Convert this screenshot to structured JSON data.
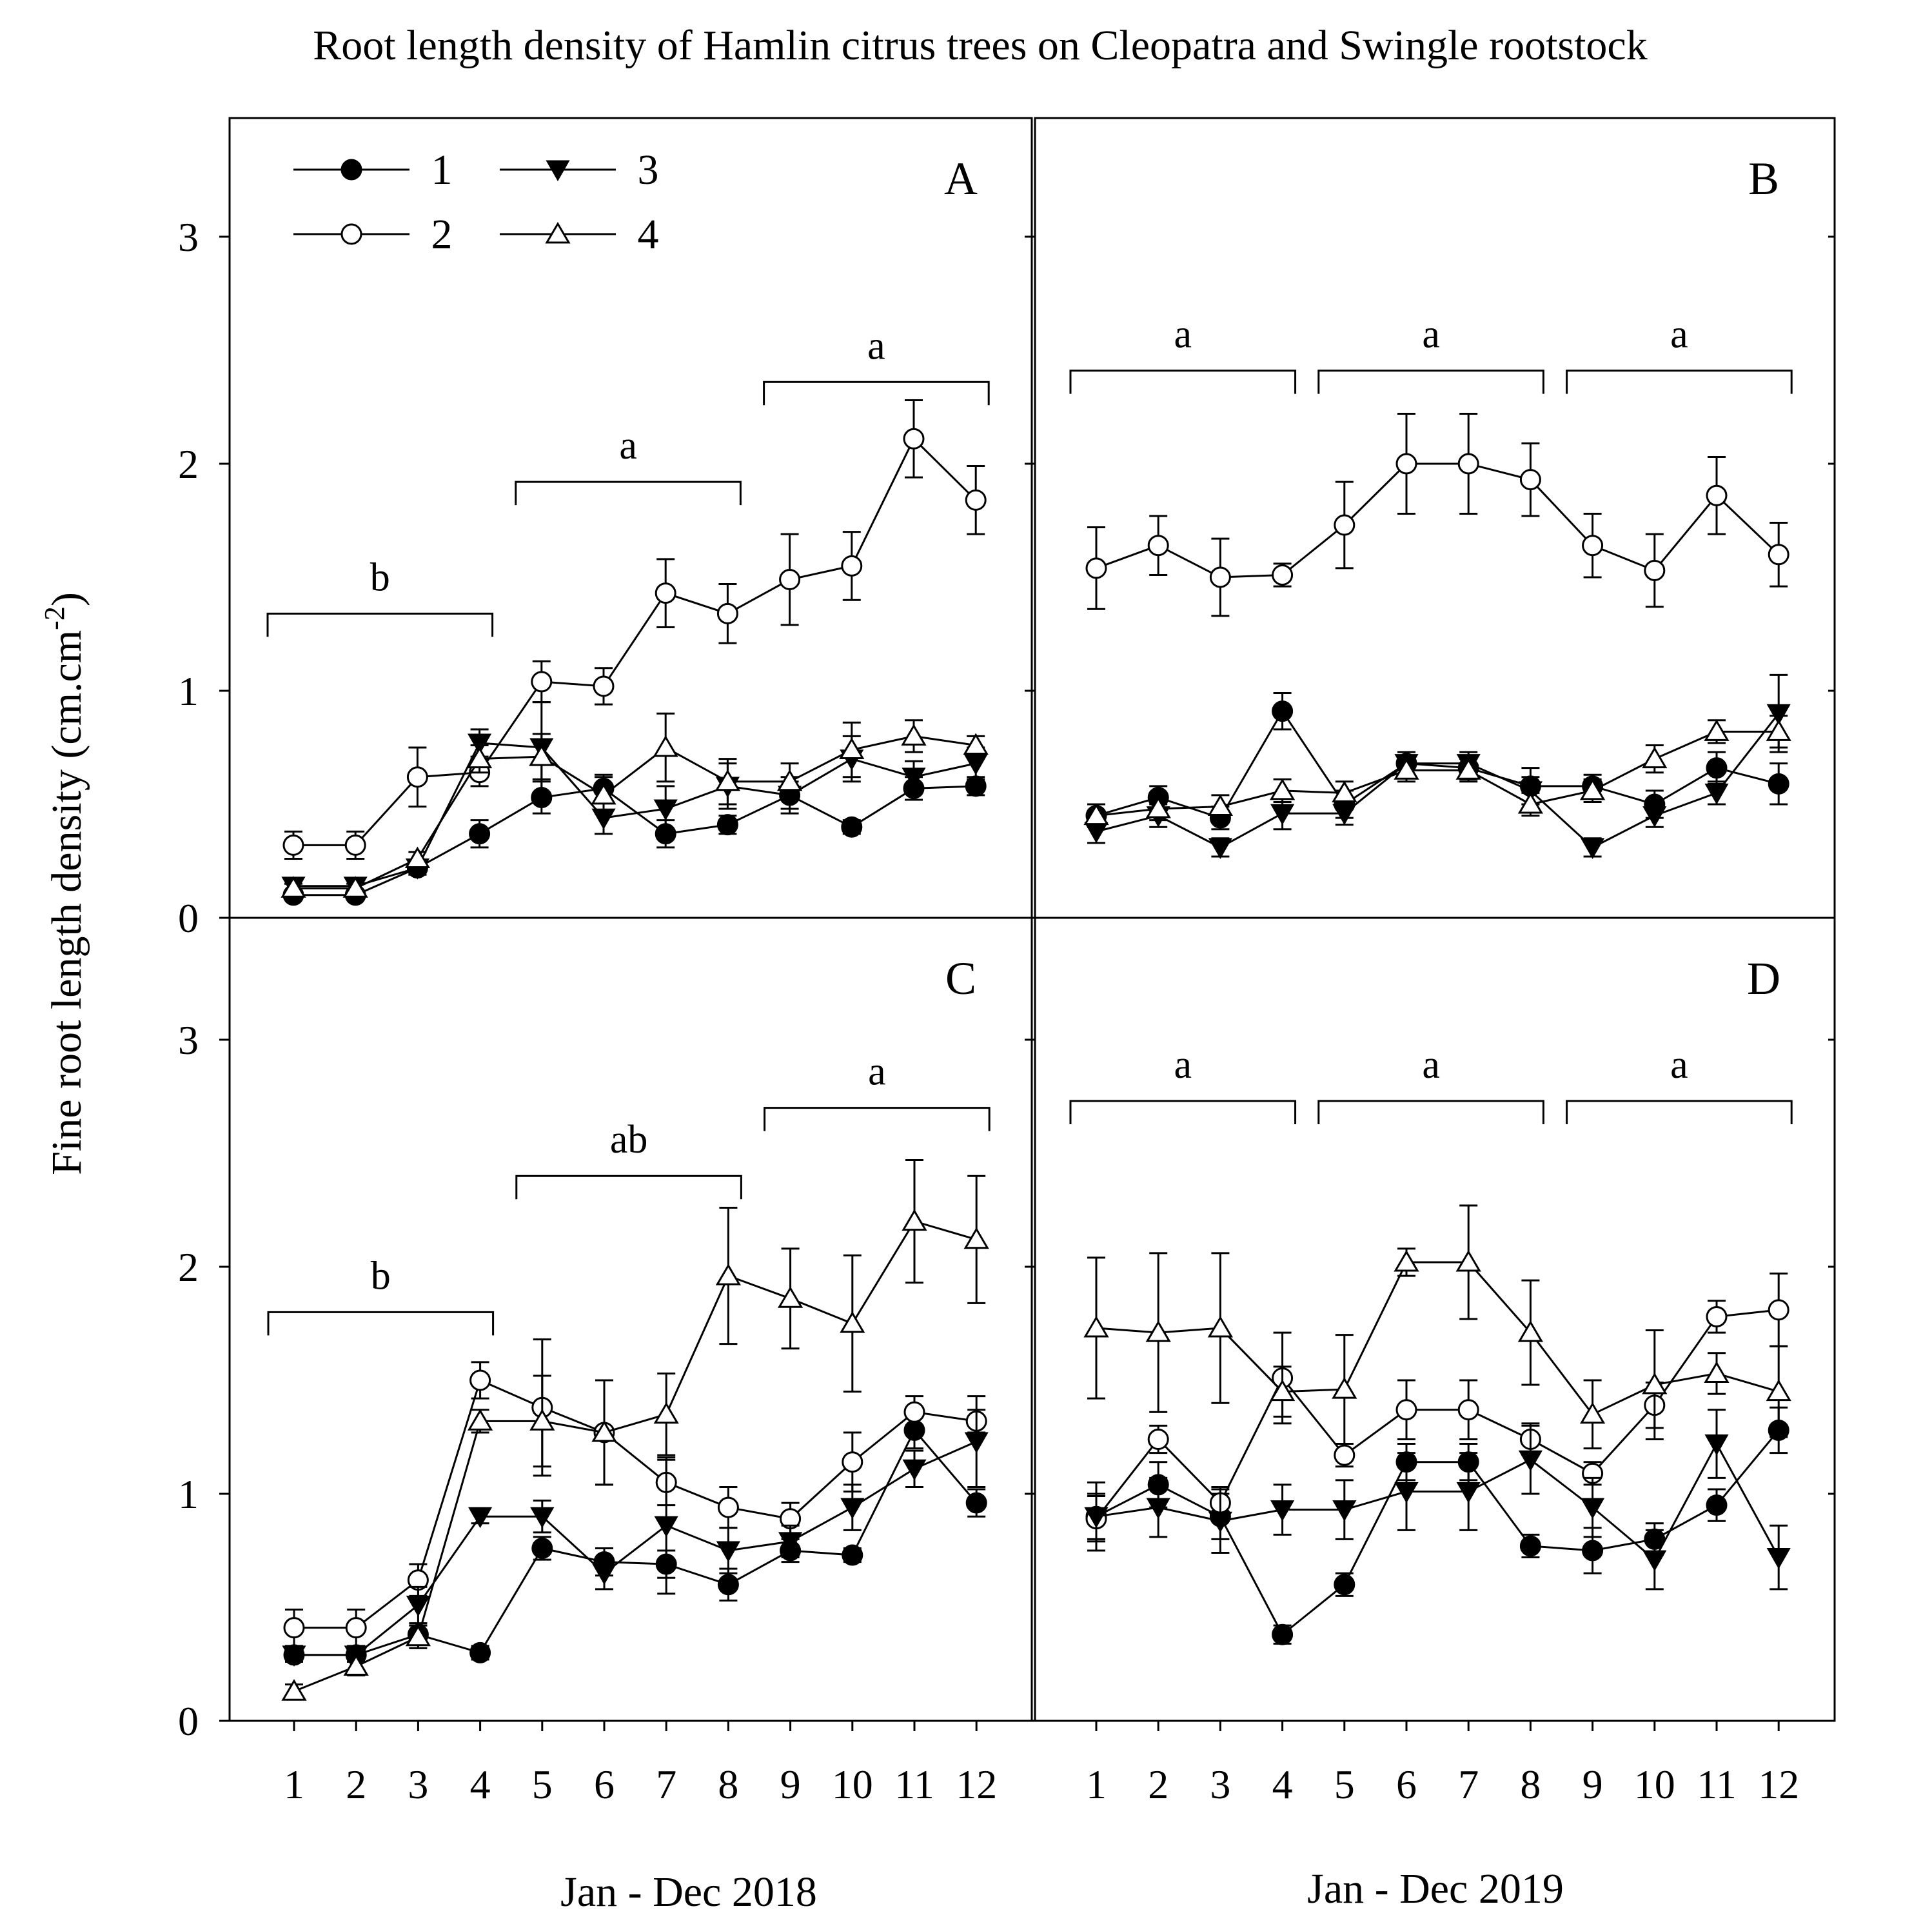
{
  "title": "Root length density of Hamlin citrus trees on Cleopatra and Swingle rootstock",
  "ylabel": "Fine root length density (cm.cm",
  "ylabel_sup": "-2",
  "ylabel_close": ")",
  "legend": [
    {
      "label": "1",
      "marker": "filled-circle"
    },
    {
      "label": "2",
      "marker": "open-circle"
    },
    {
      "label": "3",
      "marker": "filled-triangle-down"
    },
    {
      "label": "4",
      "marker": "open-triangle-up"
    }
  ],
  "chart_data": [
    {
      "type": "line",
      "panel": "A",
      "x": [
        1,
        2,
        3,
        4,
        5,
        6,
        7,
        8,
        9,
        10,
        11,
        12
      ],
      "ylim": [
        0,
        3.5
      ],
      "yticks": [
        0,
        1,
        2,
        3
      ],
      "series": [
        {
          "name": "1",
          "values": [
            0.1,
            0.1,
            0.22,
            0.37,
            0.53,
            0.57,
            0.37,
            0.41,
            0.54,
            0.4,
            0.57,
            0.58
          ],
          "errors": [
            0.02,
            0.02,
            0.03,
            0.06,
            0.07,
            0.06,
            0.06,
            0.04,
            0.06,
            0.03,
            0.05,
            0.04
          ]
        },
        {
          "name": "2",
          "values": [
            0.32,
            0.32,
            0.62,
            0.64,
            1.04,
            1.02,
            1.43,
            1.34,
            1.49,
            1.55,
            2.11,
            1.84
          ],
          "errors": [
            0.06,
            0.06,
            0.13,
            0.06,
            0.09,
            0.08,
            0.15,
            0.13,
            0.2,
            0.15,
            0.17,
            0.15
          ]
        },
        {
          "name": "3",
          "values": [
            0.14,
            0.14,
            0.22,
            0.77,
            0.75,
            0.44,
            0.48,
            0.58,
            0.54,
            0.7,
            0.62,
            0.68
          ],
          "errors": [
            0.03,
            0.03,
            0.03,
            0.06,
            0.2,
            0.07,
            0.1,
            0.1,
            0.08,
            0.1,
            0.07,
            0.07
          ]
        },
        {
          "name": "4",
          "values": [
            0.13,
            0.13,
            0.26,
            0.7,
            0.71,
            0.54,
            0.75,
            0.6,
            0.6,
            0.74,
            0.8,
            0.76
          ],
          "errors": [
            0.02,
            0.02,
            0.03,
            0.06,
            0.1,
            0.08,
            0.15,
            0.1,
            0.08,
            0.12,
            0.07,
            0.04
          ]
        }
      ],
      "groups": [
        {
          "label": "b",
          "from": 1,
          "to": 4,
          "level": 1.34
        },
        {
          "label": "a",
          "from": 5,
          "to": 8,
          "level": 1.92
        },
        {
          "label": "a",
          "from": 9,
          "to": 12,
          "level": 2.36
        }
      ]
    },
    {
      "type": "line",
      "panel": "B",
      "x": [
        1,
        2,
        3,
        4,
        5,
        6,
        7,
        8,
        9,
        10,
        11,
        12
      ],
      "ylim": [
        0,
        3.5
      ],
      "yticks": [
        0,
        1,
        2,
        3
      ],
      "series": [
        {
          "name": "1",
          "values": [
            0.45,
            0.53,
            0.44,
            0.91,
            0.5,
            0.68,
            0.66,
            0.58,
            0.58,
            0.5,
            0.66,
            0.59
          ],
          "errors": [
            0.05,
            0.05,
            0.05,
            0.08,
            0.06,
            0.05,
            0.05,
            0.08,
            0.05,
            0.06,
            0.07,
            0.09
          ]
        },
        {
          "name": "2",
          "values": [
            1.54,
            1.64,
            1.5,
            1.51,
            1.73,
            2.0,
            2.0,
            1.93,
            1.64,
            1.53,
            1.86,
            1.6
          ],
          "errors": [
            0.18,
            0.13,
            0.17,
            0.05,
            0.19,
            0.22,
            0.22,
            0.16,
            0.14,
            0.16,
            0.17,
            0.14
          ]
        },
        {
          "name": "3",
          "values": [
            0.38,
            0.45,
            0.31,
            0.46,
            0.46,
            0.68,
            0.68,
            0.56,
            0.31,
            0.45,
            0.55,
            0.9
          ],
          "errors": [
            0.05,
            0.05,
            0.04,
            0.07,
            0.05,
            0.05,
            0.05,
            0.06,
            0.04,
            0.05,
            0.05,
            0.17
          ]
        },
        {
          "name": "4",
          "values": [
            0.45,
            0.48,
            0.49,
            0.56,
            0.55,
            0.65,
            0.65,
            0.5,
            0.56,
            0.7,
            0.82,
            0.82
          ],
          "errors": [
            0.05,
            0.05,
            0.05,
            0.05,
            0.05,
            0.05,
            0.05,
            0.05,
            0.05,
            0.06,
            0.05,
            0.07
          ]
        }
      ],
      "groups": [
        {
          "label": "a",
          "from": 1,
          "to": 4,
          "level": 2.41
        },
        {
          "label": "a",
          "from": 5,
          "to": 8,
          "level": 2.41
        },
        {
          "label": "a",
          "from": 9,
          "to": 12,
          "level": 2.41
        }
      ]
    },
    {
      "type": "line",
      "panel": "C",
      "x": [
        1,
        2,
        3,
        4,
        5,
        6,
        7,
        8,
        9,
        10,
        11,
        12
      ],
      "ylim": [
        0,
        3.5
      ],
      "yticks": [
        0,
        1,
        2,
        3
      ],
      "series": [
        {
          "name": "1",
          "values": [
            0.29,
            0.29,
            0.38,
            0.3,
            0.76,
            0.7,
            0.69,
            0.6,
            0.75,
            0.73,
            1.28,
            0.96
          ],
          "errors": [
            0.03,
            0.03,
            0.04,
            0.03,
            0.05,
            0.06,
            0.06,
            0.07,
            0.05,
            0.03,
            0.08,
            0.06
          ]
        },
        {
          "name": "2",
          "values": [
            0.41,
            0.41,
            0.62,
            1.5,
            1.38,
            1.27,
            1.05,
            0.94,
            0.89,
            1.14,
            1.36,
            1.32
          ],
          "errors": [
            0.08,
            0.08,
            0.07,
            0.08,
            0.3,
            0.23,
            0.1,
            0.09,
            0.07,
            0.13,
            0.07,
            0.05
          ]
        },
        {
          "name": "3",
          "values": [
            0.29,
            0.29,
            0.51,
            0.9,
            0.9,
            0.65,
            0.86,
            0.75,
            0.79,
            0.94,
            1.11,
            1.23
          ],
          "errors": [
            0.03,
            0.03,
            0.08,
            0.03,
            0.07,
            0.07,
            0.3,
            0.1,
            0.07,
            0.1,
            0.08,
            0.2
          ]
        },
        {
          "name": "4",
          "values": [
            0.13,
            0.24,
            0.37,
            1.32,
            1.32,
            1.27,
            1.35,
            1.96,
            1.86,
            1.75,
            2.2,
            2.12
          ],
          "errors": [
            0.03,
            0.04,
            0.05,
            0.05,
            0.2,
            0.23,
            0.18,
            0.3,
            0.22,
            0.3,
            0.27,
            0.28
          ]
        }
      ],
      "groups": [
        {
          "label": "b",
          "from": 1,
          "to": 4,
          "level": 1.8
        },
        {
          "label": "ab",
          "from": 5,
          "to": 8,
          "level": 2.4
        },
        {
          "label": "a",
          "from": 9,
          "to": 12,
          "level": 2.7
        }
      ]
    },
    {
      "type": "line",
      "panel": "D",
      "x": [
        1,
        2,
        3,
        4,
        5,
        6,
        7,
        8,
        9,
        10,
        11,
        12
      ],
      "ylim": [
        0,
        3.5
      ],
      "yticks": [
        0,
        1,
        2,
        3
      ],
      "series": [
        {
          "name": "1",
          "values": [
            0.9,
            1.04,
            0.9,
            0.38,
            0.6,
            1.14,
            1.14,
            0.77,
            0.75,
            0.8,
            0.95,
            1.28
          ],
          "errors": [
            0.1,
            0.1,
            0.1,
            0.04,
            0.05,
            0.08,
            0.08,
            0.05,
            0.1,
            0.07,
            0.07,
            0.1
          ]
        },
        {
          "name": "2",
          "values": [
            0.89,
            1.24,
            0.96,
            1.51,
            1.17,
            1.37,
            1.37,
            1.24,
            1.09,
            1.39,
            1.78,
            1.81
          ],
          "errors": [
            0.1,
            0.06,
            0.07,
            0.2,
            0.05,
            0.13,
            0.13,
            0.07,
            0.05,
            0.1,
            0.07,
            0.16
          ]
        },
        {
          "name": "3",
          "values": [
            0.9,
            0.94,
            0.88,
            0.93,
            0.93,
            1.01,
            1.01,
            1.15,
            0.94,
            0.71,
            1.22,
            0.72
          ],
          "errors": [
            0.15,
            0.13,
            0.14,
            0.11,
            0.13,
            0.17,
            0.17,
            0.15,
            0.13,
            0.13,
            0.15,
            0.14
          ]
        },
        {
          "name": "4",
          "values": [
            1.73,
            1.71,
            1.73,
            1.45,
            1.46,
            2.02,
            2.02,
            1.71,
            1.35,
            1.48,
            1.53,
            1.45
          ],
          "errors": [
            0.31,
            0.35,
            0.33,
            0.11,
            0.24,
            0.06,
            0.25,
            0.23,
            0.15,
            0.24,
            0.09,
            0.2
          ]
        }
      ],
      "groups": [
        {
          "label": "a",
          "from": 1,
          "to": 4,
          "level": 2.73
        },
        {
          "label": "a",
          "from": 5,
          "to": 8,
          "level": 2.73
        },
        {
          "label": "a",
          "from": 9,
          "to": 12,
          "level": 2.73
        }
      ]
    }
  ],
  "xlabel_left": "Jan - Dec 2018",
  "xlabel_right": "Jan - Dec 2019",
  "xticks": [
    "1",
    "2",
    "3",
    "4",
    "5",
    "6",
    "7",
    "8",
    "9",
    "10",
    "11",
    "12"
  ],
  "yticks": [
    "0",
    "1",
    "2",
    "3"
  ]
}
